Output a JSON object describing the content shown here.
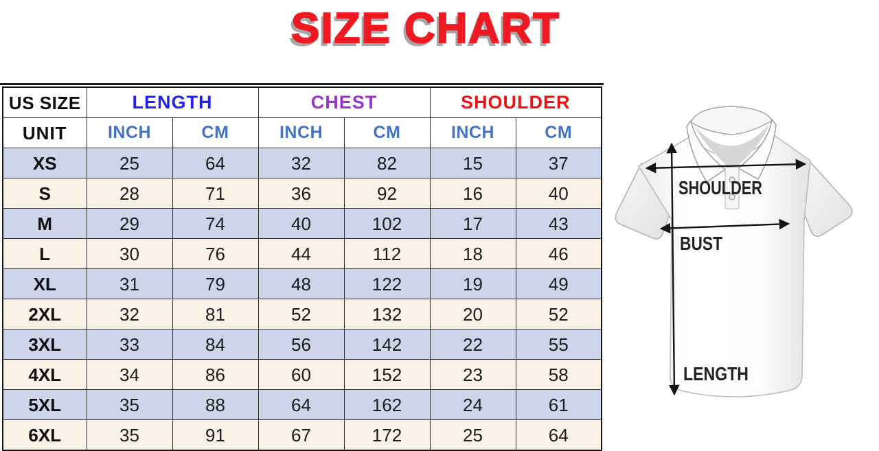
{
  "page": {
    "title": "SIZE CHART"
  },
  "colors": {
    "title_red": "#EF1A21",
    "title_shadow_gray": "#A8A8A8",
    "length_blue": "#2222F0",
    "chest_purple": "#9933CC",
    "shoulder_red": "#EE1111",
    "unit_blue": "#4472C4",
    "row_stripe_blue": "#CCD5EA",
    "row_stripe_cream": "#FBF2E6",
    "table_border": "#161616"
  },
  "table": {
    "corner_header": "US SIZE",
    "unit_row_label": "UNIT",
    "groups": [
      {
        "label": "LENGTH",
        "color": "length_blue"
      },
      {
        "label": "CHEST",
        "color": "chest_purple"
      },
      {
        "label": "SHOULDER",
        "color": "shoulder_red"
      }
    ],
    "unit_headers": [
      "INCH",
      "CM"
    ],
    "rows": [
      {
        "size": "XS",
        "values": [
          25,
          64,
          32,
          82,
          15,
          37
        ]
      },
      {
        "size": "S",
        "values": [
          28,
          71,
          36,
          92,
          16,
          40
        ]
      },
      {
        "size": "M",
        "values": [
          29,
          74,
          40,
          102,
          17,
          43
        ]
      },
      {
        "size": "L",
        "values": [
          30,
          76,
          44,
          112,
          18,
          46
        ]
      },
      {
        "size": "XL",
        "values": [
          31,
          79,
          48,
          122,
          19,
          49
        ]
      },
      {
        "size": "2XL",
        "values": [
          32,
          81,
          52,
          132,
          20,
          52
        ]
      },
      {
        "size": "3XL",
        "values": [
          33,
          84,
          56,
          142,
          22,
          55
        ]
      },
      {
        "size": "4XL",
        "values": [
          34,
          86,
          60,
          152,
          23,
          58
        ]
      },
      {
        "size": "5XL",
        "values": [
          35,
          88,
          64,
          162,
          24,
          61
        ]
      },
      {
        "size": "6XL",
        "values": [
          35,
          91,
          67,
          172,
          25,
          64
        ]
      }
    ]
  },
  "diagram": {
    "labels": {
      "shoulder": "SHOULDER",
      "bust": "BUST",
      "length": "LENGTH"
    }
  }
}
